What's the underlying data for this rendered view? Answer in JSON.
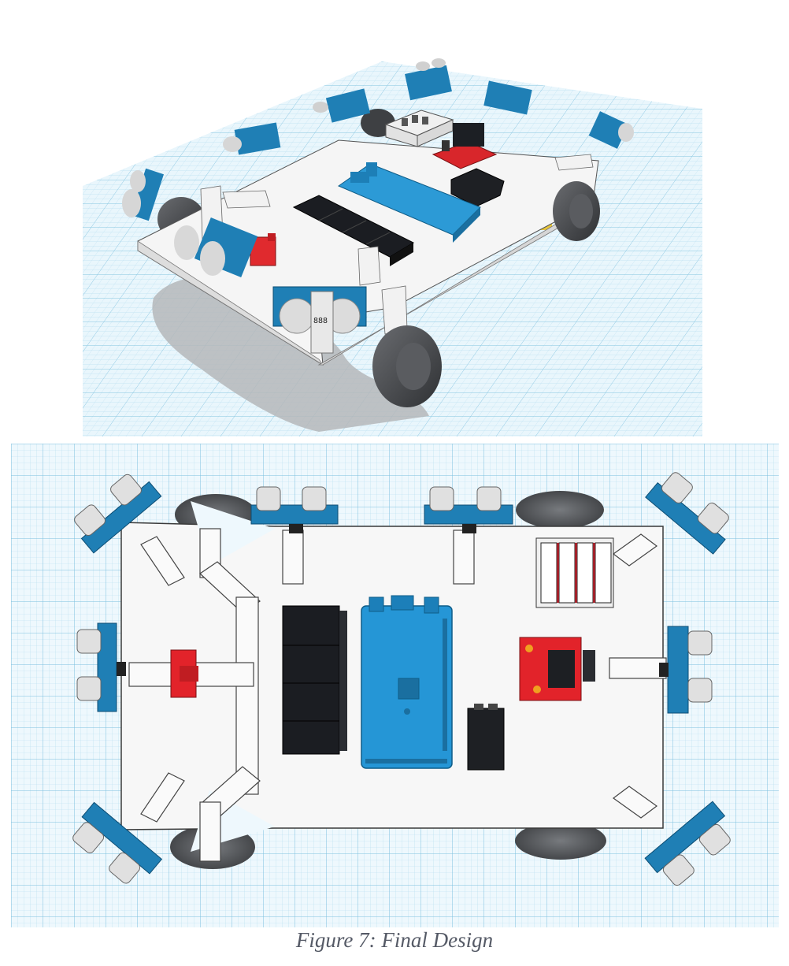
{
  "figure": {
    "caption": "Figure 7: Final Design"
  },
  "views": [
    {
      "name": "perspective-view",
      "content": "3D render of robot chassis with ultrasonic sensors, microcontroller, motor drivers, battery pack and four wheels"
    },
    {
      "name": "top-view",
      "content": "Top-down view of the same robot chassis"
    }
  ],
  "components": {
    "ultrasonic_sensor_count": 8,
    "wheel_count": 4,
    "sensor_label": "888"
  },
  "colors": {
    "grid_line": "#a9d6ea",
    "grid_bg": "#e9f6fc",
    "sensor_blue": "#1f7fb5",
    "board_blue": "#2596d6",
    "driver_red": "#e2232a",
    "relay_black": "#1b1d22",
    "wheel_gray": "#4a4c50",
    "chassis_white": "#f7f7f7"
  }
}
